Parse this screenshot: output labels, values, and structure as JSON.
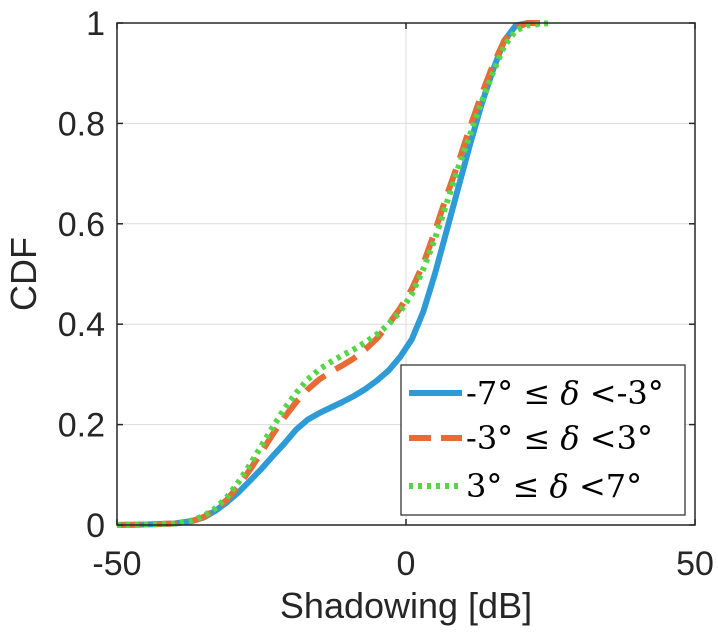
{
  "chart_data": {
    "type": "line",
    "xlabel": "Shadowing [dB]",
    "ylabel": "CDF",
    "xlim": [
      -50,
      50
    ],
    "ylim": [
      0,
      1
    ],
    "xticks": [
      -50,
      0,
      50
    ],
    "xtick_labels": [
      "-50",
      "0",
      "50"
    ],
    "yticks": [
      0,
      0.2,
      0.4,
      0.6,
      0.8,
      1
    ],
    "ytick_labels": [
      "0",
      "0.2",
      "0.4",
      "0.6",
      "0.8",
      "1"
    ],
    "grid": true,
    "legend_position": "bottom-right",
    "series": [
      {
        "name": "-7° ≤ δ <-3°",
        "color": "#2f9bd6",
        "style": "solid",
        "x": [
          -50,
          -45,
          -40,
          -37,
          -35,
          -33,
          -31,
          -29,
          -27,
          -25,
          -23,
          -21,
          -19,
          -17,
          -15,
          -13,
          -11,
          -9,
          -7,
          -5,
          -3,
          -1,
          1,
          3,
          5,
          7,
          9,
          11,
          13,
          15,
          17,
          19,
          21,
          22
        ],
        "y": [
          0,
          0.001,
          0.003,
          0.008,
          0.015,
          0.028,
          0.045,
          0.065,
          0.088,
          0.112,
          0.138,
          0.163,
          0.19,
          0.21,
          0.223,
          0.234,
          0.245,
          0.257,
          0.271,
          0.288,
          0.308,
          0.335,
          0.37,
          0.425,
          0.5,
          0.585,
          0.67,
          0.755,
          0.835,
          0.905,
          0.965,
          0.995,
          1,
          1
        ]
      },
      {
        "name": "-3° ≤ δ <3°",
        "color": "#e86a35",
        "style": "dashed",
        "x": [
          -50,
          -45,
          -40,
          -37,
          -35,
          -33,
          -31,
          -29,
          -27,
          -25,
          -23,
          -21,
          -19,
          -17,
          -15,
          -13,
          -11,
          -9,
          -7,
          -5,
          -3,
          -1,
          1,
          3,
          5,
          7,
          9,
          11,
          13,
          15,
          17,
          19,
          21,
          23,
          24
        ],
        "y": [
          0,
          0.001,
          0.003,
          0.008,
          0.016,
          0.03,
          0.05,
          0.078,
          0.11,
          0.145,
          0.182,
          0.215,
          0.245,
          0.27,
          0.29,
          0.305,
          0.318,
          0.332,
          0.35,
          0.372,
          0.4,
          0.432,
          0.47,
          0.52,
          0.585,
          0.655,
          0.72,
          0.79,
          0.855,
          0.915,
          0.965,
          0.99,
          1,
          1,
          1
        ]
      },
      {
        "name": "3° ≤ δ <7°",
        "color": "#55d646",
        "style": "dotted",
        "x": [
          -50,
          -45,
          -40,
          -37,
          -35,
          -33,
          -31,
          -29,
          -27,
          -25,
          -23,
          -21,
          -19,
          -17,
          -15,
          -13,
          -11,
          -9,
          -7,
          -5,
          -3,
          -1,
          1,
          3,
          5,
          7,
          9,
          11,
          13,
          15,
          17,
          19,
          21,
          23,
          25
        ],
        "y": [
          0,
          0.001,
          0.003,
          0.009,
          0.018,
          0.033,
          0.055,
          0.085,
          0.12,
          0.158,
          0.196,
          0.232,
          0.263,
          0.29,
          0.31,
          0.325,
          0.338,
          0.35,
          0.364,
          0.38,
          0.4,
          0.425,
          0.46,
          0.51,
          0.57,
          0.64,
          0.71,
          0.775,
          0.84,
          0.9,
          0.955,
          0.985,
          0.995,
          0.998,
          1
        ]
      }
    ]
  }
}
